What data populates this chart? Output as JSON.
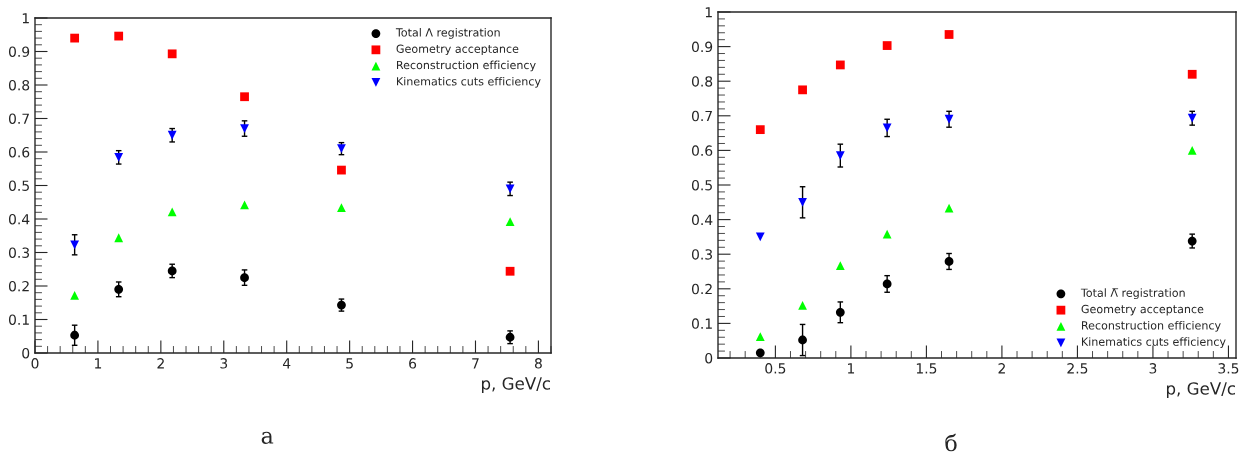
{
  "chart_data": [
    {
      "type": "scatter",
      "xlabel": "p, GeV/c",
      "xlim": [
        0,
        8.2
      ],
      "xticks": [
        0,
        1,
        2,
        3,
        4,
        5,
        6,
        7,
        8
      ],
      "ylim": [
        0,
        1
      ],
      "yticks": [
        0,
        0.1,
        0.2,
        0.3,
        0.4,
        0.5,
        0.6,
        0.7,
        0.8,
        0.9,
        1
      ],
      "grid": false,
      "legend": "top right",
      "annotations": [
        "а"
      ],
      "x": [
        0.63,
        1.33,
        2.18,
        3.33,
        4.87,
        7.55
      ],
      "series": [
        {
          "name": "Total Λ registration",
          "color": "#000000",
          "marker": "circle",
          "values": [
            0.053,
            0.19,
            0.245,
            0.225,
            0.143,
            0.047
          ],
          "errors": [
            0.03,
            0.022,
            0.02,
            0.023,
            0.018,
            0.019
          ]
        },
        {
          "name": "Geometry acceptance",
          "color": "#ff0000",
          "marker": "square",
          "values": [
            0.94,
            0.946,
            0.893,
            0.765,
            0.546,
            0.244
          ]
        },
        {
          "name": "Reconstruction efficiency",
          "color": "#00ff00",
          "marker": "triangle",
          "values": [
            0.172,
            0.344,
            0.421,
            0.442,
            0.434,
            0.392
          ]
        },
        {
          "name": "Kinematics cuts efficiency",
          "color": "#0000ff",
          "marker": "triangle_down",
          "values": [
            0.323,
            0.584,
            0.65,
            0.67,
            0.61,
            0.49
          ],
          "errors": [
            0.03,
            0.02,
            0.02,
            0.023,
            0.018,
            0.02
          ]
        }
      ]
    },
    {
      "type": "scatter",
      "xlabel": "p, GeV/c",
      "xlim": [
        0.12,
        3.55
      ],
      "xticks": [
        0.5,
        1,
        1.5,
        2,
        2.5,
        3,
        3.5
      ],
      "ylim": [
        0,
        1
      ],
      "yticks": [
        0,
        0.1,
        0.2,
        0.3,
        0.4,
        0.5,
        0.6,
        0.7,
        0.8,
        0.9,
        1
      ],
      "grid": false,
      "legend": "bottom right",
      "annotations": [
        "б"
      ],
      "x": [
        0.4,
        0.68,
        0.93,
        1.24,
        1.65,
        3.26
      ],
      "series": [
        {
          "name": "Total Λ̅ registration",
          "color": "#000000",
          "marker": "circle",
          "values": [
            0.015,
            0.052,
            0.132,
            0.214,
            0.279,
            0.338
          ],
          "errors": [
            0.006,
            0.045,
            0.03,
            0.024,
            0.023,
            0.02
          ]
        },
        {
          "name": "Geometry acceptance",
          "color": "#ff0000",
          "marker": "square",
          "values": [
            0.66,
            0.775,
            0.847,
            0.903,
            0.935,
            0.82
          ]
        },
        {
          "name": "Reconstruction efficiency",
          "color": "#00ff00",
          "marker": "triangle",
          "values": [
            0.062,
            0.152,
            0.267,
            0.358,
            0.433,
            0.6
          ]
        },
        {
          "name": "Kinematics cuts efficiency",
          "color": "#0000ff",
          "marker": "triangle_down",
          "values": [
            0.35,
            0.45,
            0.585,
            0.665,
            0.69,
            0.693
          ],
          "errors": [
            null,
            0.045,
            0.033,
            0.025,
            0.023,
            0.02
          ]
        }
      ]
    }
  ]
}
